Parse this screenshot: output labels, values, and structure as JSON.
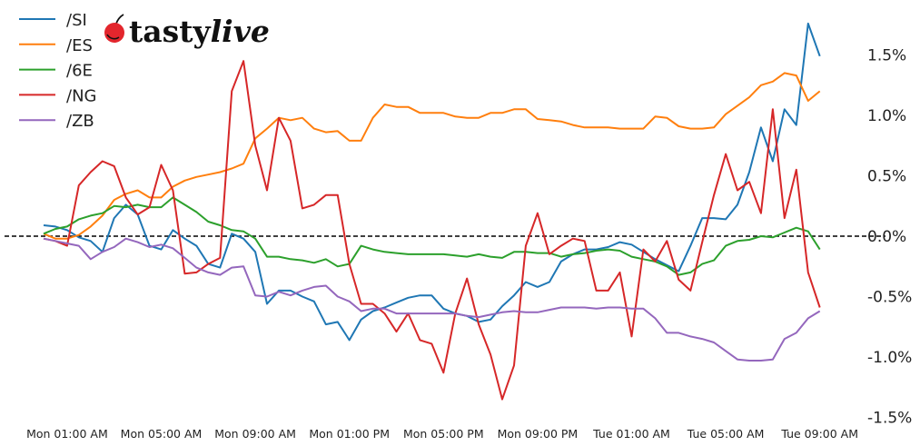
{
  "logo": {
    "text_main": "tasty",
    "text_accent": "live",
    "cherry_color": "#e3262d"
  },
  "chart_data": {
    "type": "line",
    "title": "",
    "xlabel": "",
    "ylabel": "",
    "y_unit": "%",
    "ylim": [
      -1.5,
      1.5
    ],
    "grid": false,
    "legend_placement": "top-left",
    "reference_line": {
      "value": 0.0,
      "style": "dashed",
      "color": "#000000"
    },
    "y_ticks": {
      "values": [
        1.5,
        1.0,
        0.5,
        0.0,
        -0.5,
        -1.0,
        -1.5
      ],
      "labels": [
        "1.5%",
        "1.0%",
        "0.5%",
        "0.0%",
        "-0.5%",
        "-1.0%",
        "-1.5%"
      ]
    },
    "x_ticks": {
      "at": [
        "Mon 01:00",
        "Mon 05:00",
        "Mon 09:00",
        "Mon 13:00",
        "Mon 17:00",
        "Mon 21:00",
        "Tue 01:00",
        "Tue 05:00",
        "Tue 09:00"
      ],
      "labels": [
        "Mon 01:00 AM",
        "Mon 05:00 AM",
        "Mon 09:00 AM",
        "Mon 01:00 PM",
        "Mon 05:00 PM",
        "Mon 09:00 PM",
        "Tue 01:00 AM",
        "Tue 05:00 AM",
        "Tue 09:00 AM"
      ]
    },
    "x": [
      "Mon 00:00",
      "Mon 00:30",
      "Mon 01:00",
      "Mon 01:30",
      "Mon 02:00",
      "Mon 02:30",
      "Mon 03:00",
      "Mon 03:30",
      "Mon 04:00",
      "Mon 04:30",
      "Mon 05:00",
      "Mon 05:30",
      "Mon 06:00",
      "Mon 06:30",
      "Mon 07:00",
      "Mon 07:30",
      "Mon 08:00",
      "Mon 08:30",
      "Mon 09:00",
      "Mon 09:30",
      "Mon 10:00",
      "Mon 10:30",
      "Mon 11:00",
      "Mon 11:30",
      "Mon 12:00",
      "Mon 12:30",
      "Mon 13:00",
      "Mon 13:30",
      "Mon 14:00",
      "Mon 14:30",
      "Mon 15:00",
      "Mon 15:30",
      "Mon 16:00",
      "Mon 16:30",
      "Mon 17:00",
      "Mon 17:30",
      "Mon 18:00",
      "Mon 18:30",
      "Mon 19:00",
      "Mon 19:30",
      "Mon 20:00",
      "Mon 20:30",
      "Mon 21:00",
      "Mon 21:30",
      "Mon 22:00",
      "Mon 22:30",
      "Mon 23:00",
      "Mon 23:30",
      "Tue 00:00",
      "Tue 00:30",
      "Tue 01:00",
      "Tue 01:30",
      "Tue 02:00",
      "Tue 02:30",
      "Tue 03:00",
      "Tue 03:30",
      "Tue 04:00",
      "Tue 04:30",
      "Tue 05:00",
      "Tue 05:30",
      "Tue 06:00",
      "Tue 06:30",
      "Tue 07:00",
      "Tue 07:30",
      "Tue 08:00",
      "Tue 08:30",
      "Tue 09:00"
    ],
    "series": [
      {
        "name": "/SI",
        "color": "#1f77b4",
        "values": [
          0.09,
          0.08,
          0.05,
          -0.01,
          -0.04,
          -0.13,
          0.15,
          0.26,
          0.18,
          -0.08,
          -0.11,
          0.05,
          -0.02,
          -0.08,
          -0.23,
          -0.26,
          0.02,
          -0.02,
          -0.13,
          -0.56,
          -0.45,
          -0.45,
          -0.5,
          -0.54,
          -0.73,
          -0.71,
          -0.86,
          -0.69,
          -0.62,
          -0.59,
          -0.55,
          -0.51,
          -0.49,
          -0.49,
          -0.6,
          -0.64,
          -0.66,
          -0.71,
          -0.69,
          -0.58,
          -0.49,
          -0.38,
          -0.42,
          -0.38,
          -0.21,
          -0.15,
          -0.11,
          -0.11,
          -0.09,
          -0.05,
          -0.07,
          -0.13,
          -0.19,
          -0.24,
          -0.29,
          -0.08,
          0.15,
          0.15,
          0.14,
          0.26,
          0.53,
          0.9,
          0.62,
          1.05,
          0.92,
          1.76,
          1.49
        ]
      },
      {
        "name": "/ES",
        "color": "#ff7f0e",
        "values": [
          0.02,
          -0.02,
          -0.02,
          0.01,
          0.08,
          0.17,
          0.3,
          0.35,
          0.38,
          0.32,
          0.32,
          0.41,
          0.46,
          0.49,
          0.51,
          0.53,
          0.56,
          0.6,
          0.81,
          0.89,
          0.98,
          0.96,
          0.98,
          0.89,
          0.86,
          0.87,
          0.79,
          0.79,
          0.98,
          1.09,
          1.07,
          1.07,
          1.02,
          1.02,
          1.02,
          0.99,
          0.98,
          0.98,
          1.02,
          1.02,
          1.05,
          1.05,
          0.97,
          0.96,
          0.95,
          0.92,
          0.9,
          0.9,
          0.9,
          0.89,
          0.89,
          0.89,
          0.99,
          0.98,
          0.91,
          0.89,
          0.89,
          0.9,
          1.01,
          1.08,
          1.15,
          1.25,
          1.28,
          1.35,
          1.33,
          1.12,
          1.2
        ]
      },
      {
        "name": "/6E",
        "color": "#2ca02c",
        "values": [
          0.02,
          0.06,
          0.08,
          0.14,
          0.17,
          0.19,
          0.25,
          0.24,
          0.26,
          0.24,
          0.24,
          0.32,
          0.26,
          0.2,
          0.12,
          0.09,
          0.05,
          0.04,
          -0.02,
          -0.17,
          -0.17,
          -0.19,
          -0.2,
          -0.22,
          -0.19,
          -0.25,
          -0.23,
          -0.08,
          -0.11,
          -0.13,
          -0.14,
          -0.15,
          -0.15,
          -0.15,
          -0.15,
          -0.16,
          -0.17,
          -0.15,
          -0.17,
          -0.18,
          -0.13,
          -0.13,
          -0.14,
          -0.14,
          -0.17,
          -0.15,
          -0.14,
          -0.12,
          -0.11,
          -0.12,
          -0.17,
          -0.19,
          -0.21,
          -0.25,
          -0.32,
          -0.3,
          -0.23,
          -0.2,
          -0.08,
          -0.04,
          -0.03,
          0.0,
          -0.01,
          0.03,
          0.07,
          0.04,
          -0.11
        ]
      },
      {
        "name": "/NG",
        "color": "#d62728",
        "values": [
          -0.02,
          -0.04,
          -0.08,
          0.42,
          0.53,
          0.62,
          0.58,
          0.32,
          0.18,
          0.24,
          0.59,
          0.38,
          -0.31,
          -0.3,
          -0.23,
          -0.18,
          1.2,
          1.45,
          0.75,
          0.38,
          0.98,
          0.79,
          0.23,
          0.26,
          0.34,
          0.34,
          -0.23,
          -0.56,
          -0.56,
          -0.64,
          -0.79,
          -0.64,
          -0.86,
          -0.89,
          -1.13,
          -0.64,
          -0.35,
          -0.73,
          -0.98,
          -1.35,
          -1.07,
          -0.08,
          0.19,
          -0.15,
          -0.08,
          -0.02,
          -0.04,
          -0.45,
          -0.45,
          -0.3,
          -0.83,
          -0.11,
          -0.21,
          -0.04,
          -0.36,
          -0.45,
          -0.05,
          0.34,
          0.68,
          0.38,
          0.45,
          0.19,
          1.05,
          0.15,
          0.55,
          -0.3,
          -0.59
        ]
      },
      {
        "name": "/ZB",
        "color": "#9467bd",
        "values": [
          -0.02,
          -0.04,
          -0.06,
          -0.08,
          -0.19,
          -0.13,
          -0.09,
          -0.02,
          -0.05,
          -0.09,
          -0.07,
          -0.1,
          -0.18,
          -0.26,
          -0.3,
          -0.32,
          -0.26,
          -0.25,
          -0.49,
          -0.5,
          -0.46,
          -0.49,
          -0.45,
          -0.42,
          -0.41,
          -0.5,
          -0.54,
          -0.62,
          -0.6,
          -0.6,
          -0.64,
          -0.64,
          -0.64,
          -0.64,
          -0.64,
          -0.64,
          -0.66,
          -0.67,
          -0.65,
          -0.63,
          -0.62,
          -0.63,
          -0.63,
          -0.61,
          -0.59,
          -0.59,
          -0.59,
          -0.6,
          -0.59,
          -0.59,
          -0.6,
          -0.6,
          -0.68,
          -0.8,
          -0.8,
          -0.83,
          -0.85,
          -0.88,
          -0.95,
          -1.02,
          -1.03,
          -1.03,
          -1.02,
          -0.85,
          -0.8,
          -0.68,
          -0.62
        ]
      }
    ]
  }
}
